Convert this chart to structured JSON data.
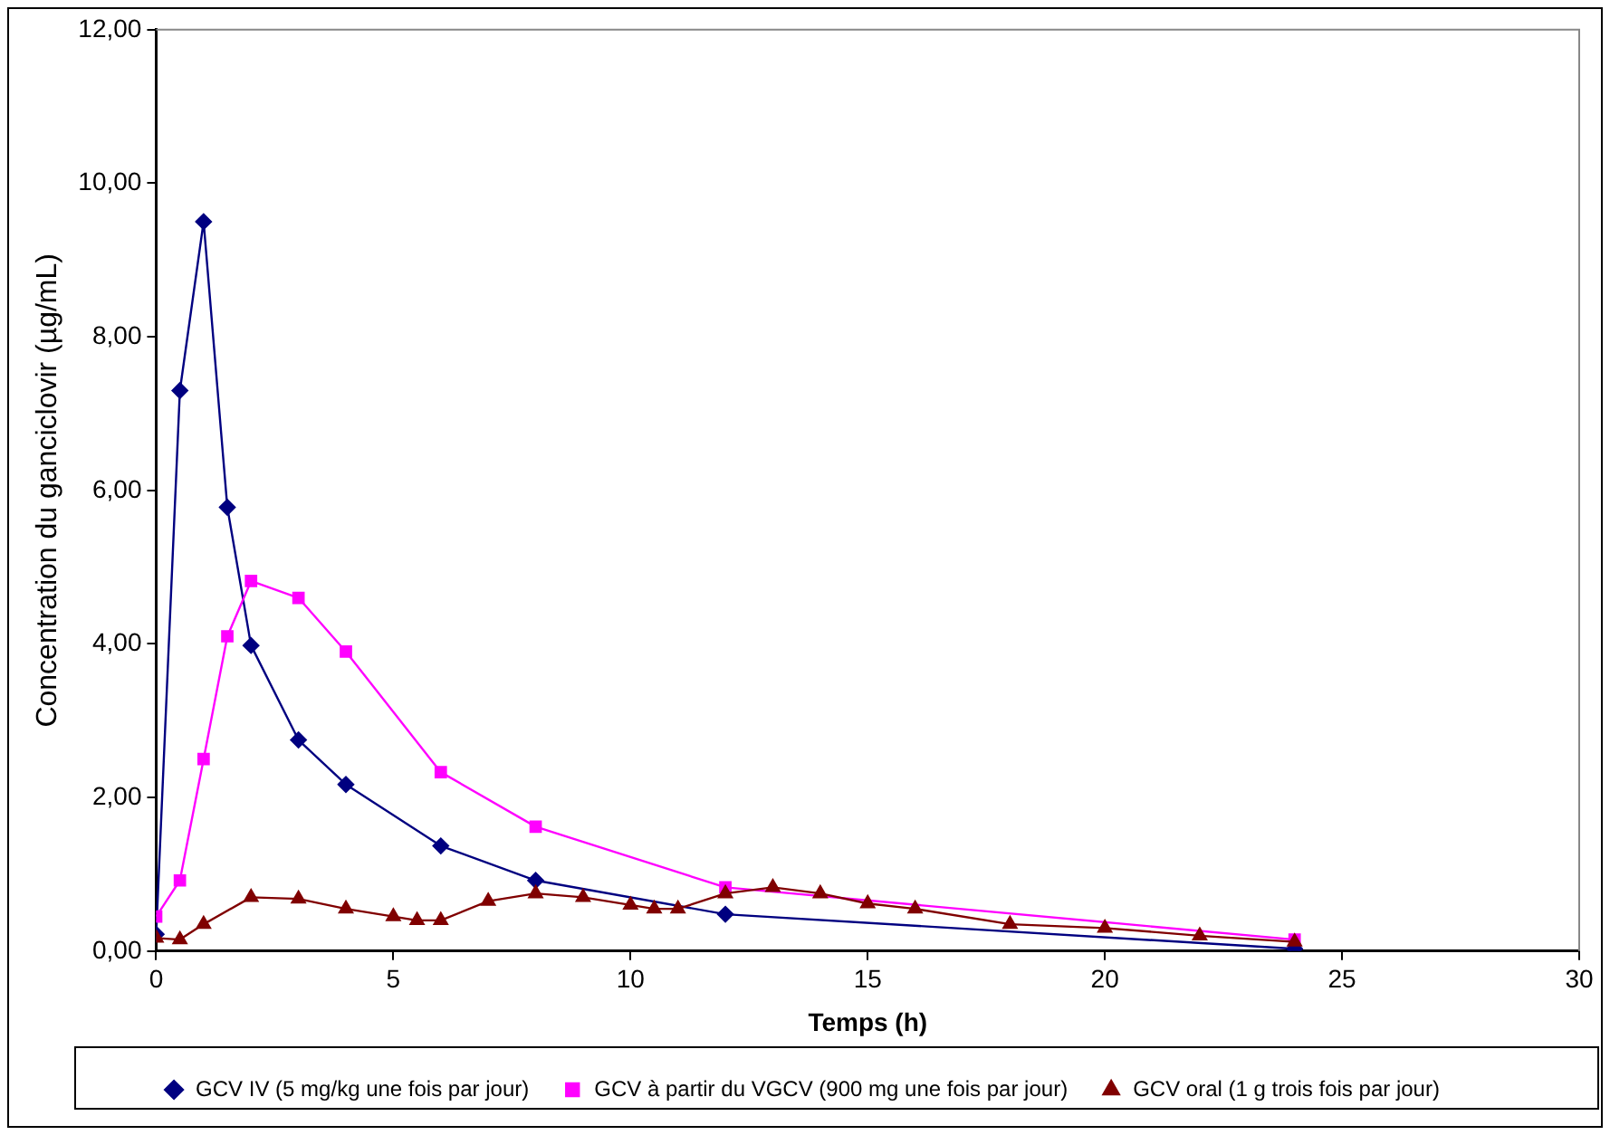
{
  "chart_data": {
    "type": "line",
    "xlabel": "Temps (h)",
    "ylabel": "Concentration du ganciclovir (µg/mL)",
    "xlim": [
      0,
      30
    ],
    "xticks": [
      0,
      5,
      10,
      15,
      20,
      25,
      30
    ],
    "ylim": [
      0,
      12
    ],
    "yticks": [
      {
        "value": 0,
        "label": "0,00"
      },
      {
        "value": 2,
        "label": "2,00"
      },
      {
        "value": 4,
        "label": "4,00"
      },
      {
        "value": 6,
        "label": "6,00"
      },
      {
        "value": 8,
        "label": "8,00"
      },
      {
        "value": 10,
        "label": "10,00"
      },
      {
        "value": 12,
        "label": "12,00"
      }
    ],
    "grid": false,
    "legend": "bottom",
    "series": [
      {
        "name": "GCV IV (5 mg/kg une fois par jour)",
        "color": "#000080",
        "marker": "diamond",
        "x": [
          0,
          0.5,
          1,
          1.5,
          2,
          3,
          4,
          6,
          8,
          12,
          24
        ],
        "values": [
          0.22,
          7.3,
          9.5,
          5.78,
          3.98,
          2.75,
          2.17,
          1.37,
          0.92,
          0.48,
          0.03
        ]
      },
      {
        "name": "GCV à partir du VGCV (900 mg une fois par jour)",
        "color": "#ff00ff",
        "marker": "square",
        "x": [
          0,
          0.5,
          1,
          1.5,
          2,
          3,
          4,
          6,
          8,
          12,
          24
        ],
        "values": [
          0.45,
          0.92,
          2.5,
          4.1,
          4.82,
          4.6,
          3.9,
          2.33,
          1.62,
          0.83,
          0.15
        ]
      },
      {
        "name": "GCV oral (1 g trois fois par jour)",
        "color": "#800000",
        "marker": "triangle",
        "x": [
          0,
          0.5,
          1,
          2,
          3,
          4,
          5,
          5.5,
          6,
          7,
          8,
          9,
          10,
          10.5,
          11,
          12,
          13,
          14,
          15,
          16,
          18,
          20,
          22,
          24
        ],
        "values": [
          0.17,
          0.15,
          0.35,
          0.7,
          0.68,
          0.55,
          0.45,
          0.4,
          0.4,
          0.65,
          0.75,
          0.7,
          0.6,
          0.55,
          0.55,
          0.75,
          0.83,
          0.75,
          0.62,
          0.55,
          0.35,
          0.3,
          0.2,
          0.12
        ]
      }
    ]
  }
}
